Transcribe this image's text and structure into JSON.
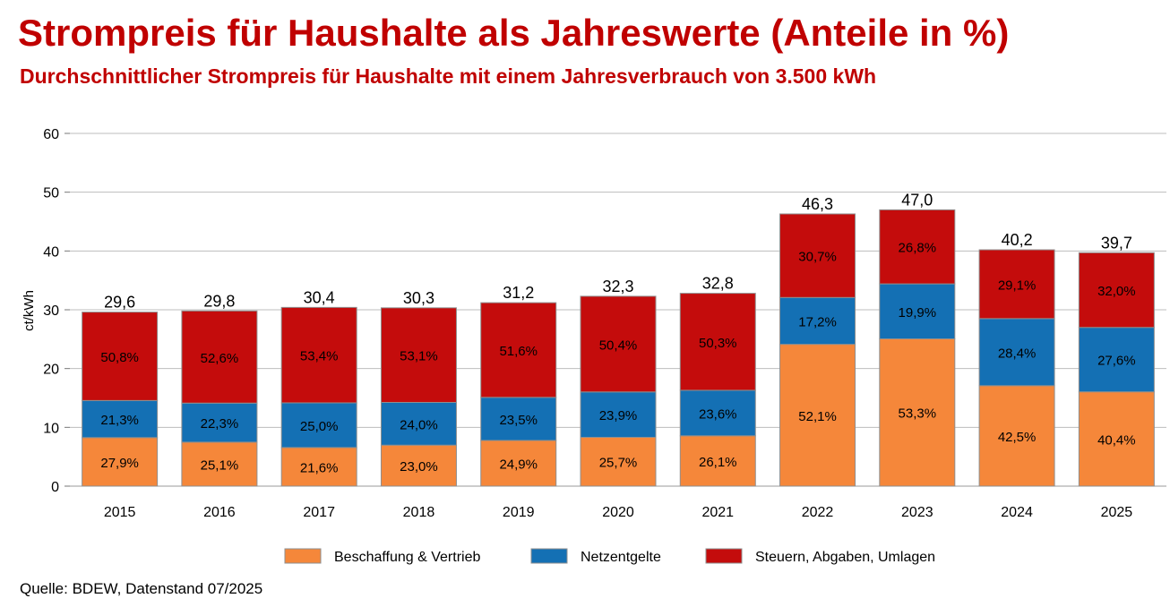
{
  "header": {
    "title": "Strompreis für Haushalte als Jahreswerte (Anteile in %)",
    "subtitle": "Durchschnittlicher Strompreis für Haushalte mit einem Jahresverbrauch von 3.500 kWh"
  },
  "footer": {
    "source": "Quelle: BDEW, Datenstand 07/2025"
  },
  "chart_data": {
    "type": "bar",
    "stacked": true,
    "ylabel": "ct/kWh",
    "ylim": [
      0,
      60
    ],
    "yticks": [
      0,
      10,
      20,
      30,
      40,
      50,
      60
    ],
    "grid": true,
    "legend_position": "bottom",
    "categories": [
      "2015",
      "2016",
      "2017",
      "2018",
      "2019",
      "2020",
      "2021",
      "2022",
      "2023",
      "2024",
      "2025"
    ],
    "totals": [
      29.6,
      29.8,
      30.4,
      30.3,
      31.2,
      32.3,
      32.8,
      46.3,
      47.0,
      40.2,
      39.7
    ],
    "total_labels": [
      "29,6",
      "29,8",
      "30,4",
      "30,3",
      "31,2",
      "32,3",
      "32,8",
      "46,3",
      "47,0",
      "40,2",
      "39,7"
    ],
    "series": [
      {
        "name": "Beschaffung & Vertrieb",
        "color": "#f5873a",
        "share_percent": [
          27.9,
          25.1,
          21.6,
          23.0,
          24.9,
          25.7,
          26.1,
          52.1,
          53.3,
          42.5,
          40.4
        ],
        "labels": [
          "27,9%",
          "25,1%",
          "21,6%",
          "23,0%",
          "24,9%",
          "25,7%",
          "26,1%",
          "52,1%",
          "53,3%",
          "42,5%",
          "40,4%"
        ]
      },
      {
        "name": "Netzentgelte",
        "color": "#1470b4",
        "share_percent": [
          21.3,
          22.3,
          25.0,
          24.0,
          23.5,
          23.9,
          23.6,
          17.2,
          19.9,
          28.4,
          27.6
        ],
        "labels": [
          "21,3%",
          "22,3%",
          "25,0%",
          "24,0%",
          "23,5%",
          "23,9%",
          "23,6%",
          "17,2%",
          "19,9%",
          "28,4%",
          "27,6%"
        ]
      },
      {
        "name": "Steuern, Abgaben, Umlagen",
        "color": "#c40c0c",
        "share_percent": [
          50.8,
          52.6,
          53.4,
          53.1,
          51.6,
          50.4,
          50.3,
          30.7,
          26.8,
          29.1,
          32.0
        ],
        "labels": [
          "50,8%",
          "52,6%",
          "53,4%",
          "53,1%",
          "51,6%",
          "50,4%",
          "50,3%",
          "30,7%",
          "26,8%",
          "29,1%",
          "32,0%"
        ]
      }
    ]
  }
}
